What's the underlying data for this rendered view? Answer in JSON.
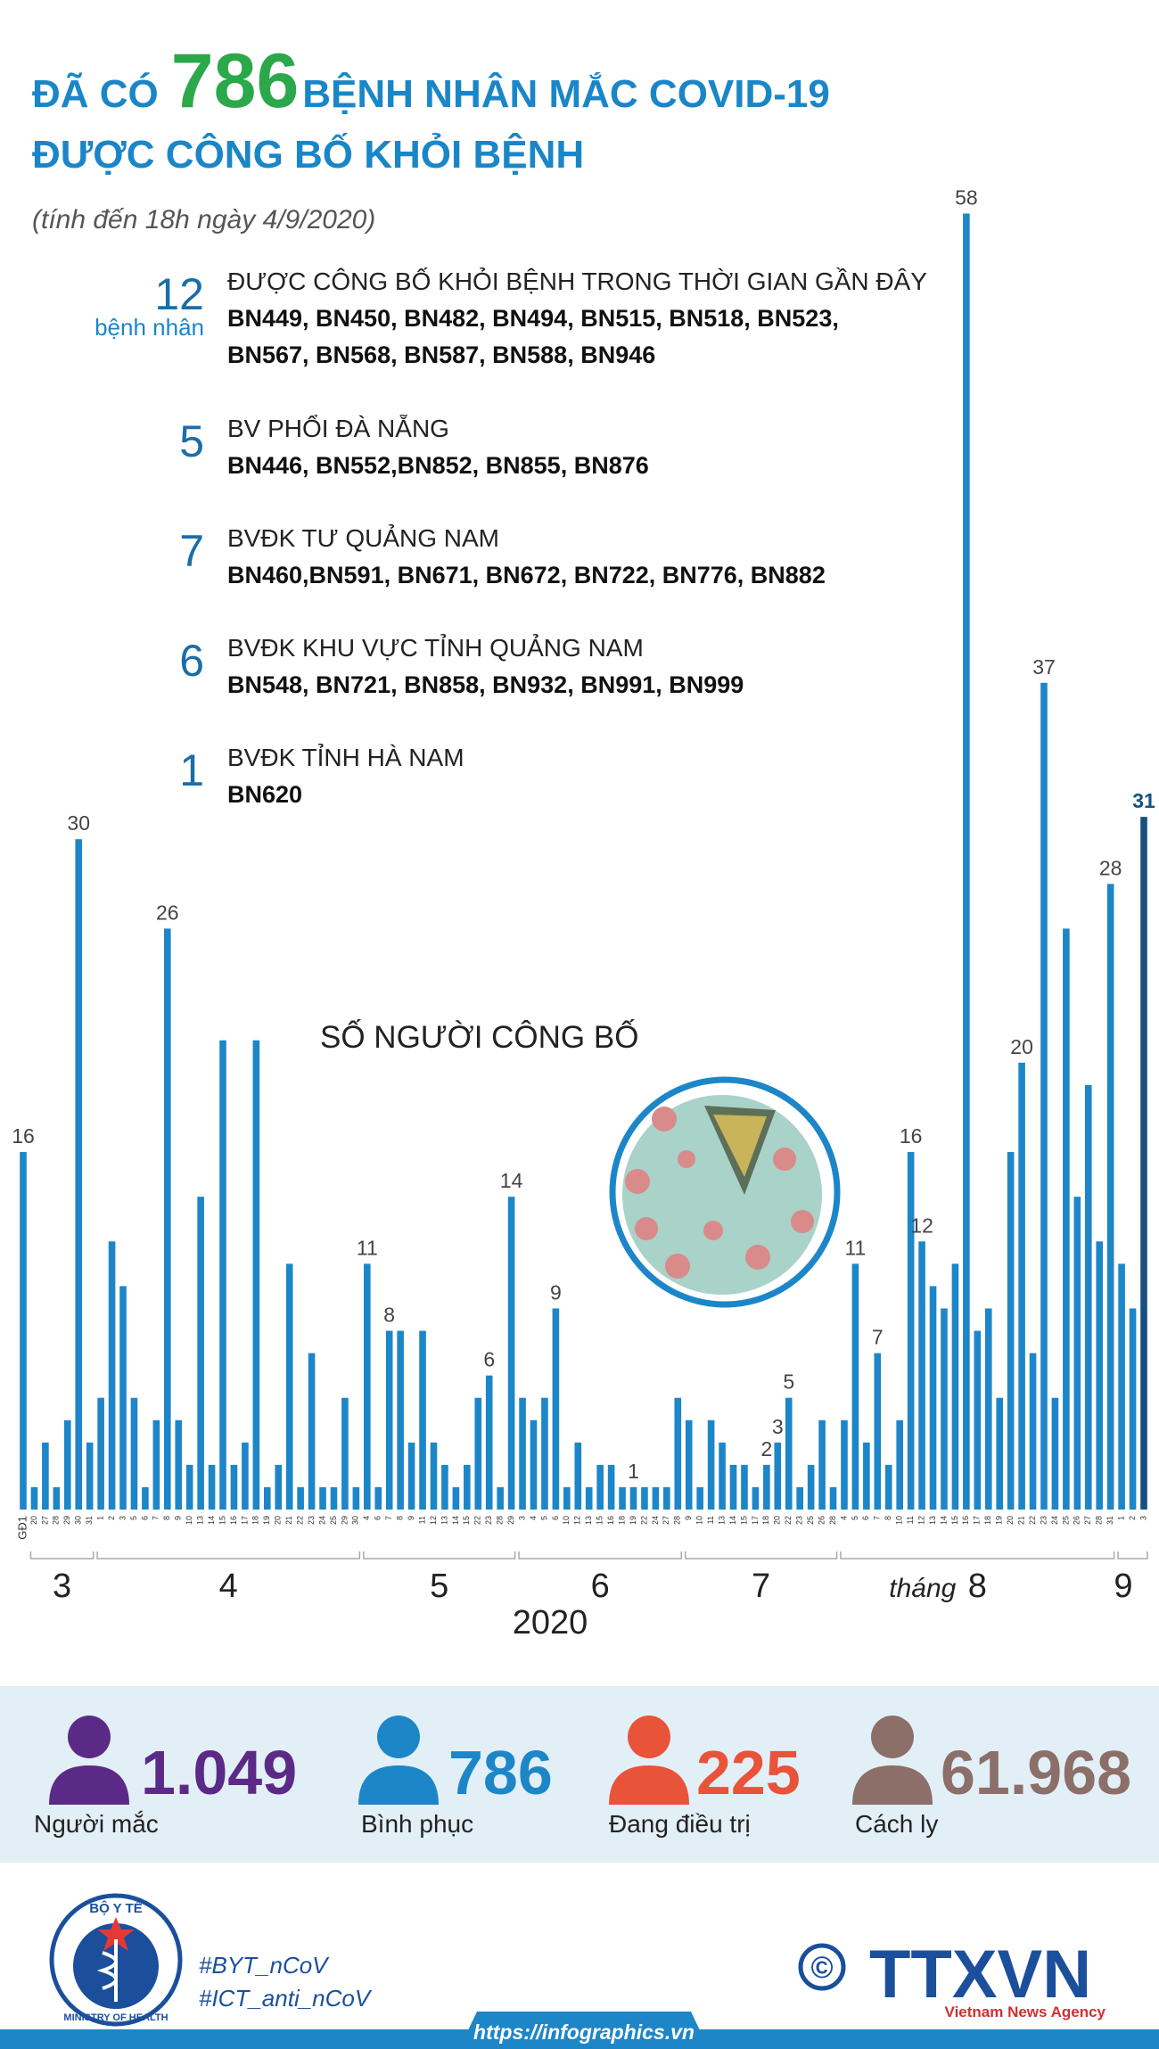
{
  "header": {
    "title_prefix": "ĐÃ CÓ",
    "title_number": "786",
    "title_rest": "BỆNH NHÂN MẮC COVID-19",
    "title_line2": "ĐƯỢC CÔNG BỐ KHỎI BỆNH",
    "subtitle": "(tính đến 18h ngày 4/9/2020)"
  },
  "groups": [
    {
      "count": 12,
      "unit": "bệnh nhân",
      "heading": "ĐƯỢC CÔNG BỐ KHỎI BỆNH TRONG THỜI GIAN GẦN ĐÂY",
      "patients": [
        "BN449, BN450, BN482, BN494, BN515, BN518, BN523,",
        "BN567, BN568, BN587, BN588, BN946"
      ]
    },
    {
      "count": 5,
      "heading": "BV PHỔI ĐÀ NẴNG",
      "patients": [
        "BN446, BN552,BN852, BN855, BN876"
      ]
    },
    {
      "count": 7,
      "heading": "BVĐK TƯ QUẢNG NAM",
      "patients": [
        "BN460,BN591, BN671, BN672, BN722, BN776, BN882"
      ]
    },
    {
      "count": 6,
      "heading": "BVĐK KHU VỰC TỈNH QUẢNG NAM",
      "patients": [
        "BN548, BN721, BN858, BN932, BN991, BN999"
      ]
    },
    {
      "count": 1,
      "heading": "BVĐK TỈNH HÀ NAM",
      "patients": [
        "BN620"
      ]
    }
  ],
  "chart_data": {
    "type": "bar",
    "title": "SỐ NGƯỜI CÔNG BỐ",
    "categories": [
      "GĐ1",
      "20",
      "27",
      "28",
      "29",
      "30",
      "31",
      "1",
      "2",
      "3",
      "5",
      "6",
      "7",
      "8",
      "9",
      "10",
      "13",
      "14",
      "15",
      "16",
      "17",
      "18",
      "19",
      "20",
      "21",
      "22",
      "23",
      "24",
      "25",
      "29",
      "30",
      "4",
      "6",
      "7",
      "8",
      "9",
      "11",
      "12",
      "13",
      "14",
      "15",
      "22",
      "23",
      "28",
      "29",
      "3",
      "4",
      "5",
      "6",
      "10",
      "12",
      "13",
      "15",
      "16",
      "18",
      "19",
      "22",
      "24",
      "27",
      "28",
      "9",
      "10",
      "11",
      "13",
      "14",
      "15",
      "17",
      "18",
      "20",
      "22",
      "23",
      "25",
      "26",
      "28",
      "4",
      "5",
      "6",
      "7",
      "8",
      "10",
      "11",
      "12",
      "13",
      "14",
      "15",
      "16",
      "17",
      "18",
      "19",
      "20",
      "21",
      "22",
      "23",
      "24",
      "25",
      "26",
      "27",
      "28",
      "31",
      "1",
      "2",
      "3"
    ],
    "values": [
      16,
      1,
      3,
      1,
      4,
      30,
      3,
      5,
      12,
      10,
      5,
      1,
      4,
      26,
      4,
      2,
      14,
      2,
      21,
      2,
      3,
      21,
      1,
      2,
      11,
      1,
      7,
      1,
      1,
      5,
      1,
      11,
      1,
      8,
      8,
      3,
      8,
      3,
      2,
      1,
      2,
      5,
      6,
      1,
      14,
      5,
      4,
      5,
      9,
      1,
      3,
      1,
      2,
      2,
      1,
      1,
      1,
      1,
      1,
      5,
      4,
      1,
      4,
      3,
      2,
      2,
      1,
      2,
      3,
      5,
      1,
      2,
      4,
      1,
      4,
      11,
      3,
      7,
      2,
      4,
      16,
      12,
      10,
      9,
      11,
      58,
      8,
      9,
      5,
      16,
      20,
      7,
      37,
      5,
      26,
      14,
      19,
      12,
      28,
      11,
      9,
      31
    ],
    "value_labels": [
      "16",
      null,
      null,
      null,
      null,
      "30",
      null,
      null,
      null,
      null,
      null,
      null,
      null,
      "26",
      null,
      null,
      null,
      null,
      null,
      null,
      null,
      null,
      null,
      null,
      null,
      null,
      null,
      null,
      null,
      null,
      null,
      "11",
      null,
      "8",
      null,
      null,
      null,
      null,
      null,
      null,
      null,
      null,
      "6",
      null,
      "14",
      null,
      null,
      null,
      "9",
      null,
      null,
      null,
      null,
      null,
      null,
      "1",
      null,
      null,
      null,
      null,
      null,
      null,
      null,
      null,
      null,
      null,
      null,
      "2",
      "3",
      "5",
      null,
      null,
      null,
      null,
      null,
      "11",
      null,
      "7",
      null,
      null,
      "16",
      "12",
      null,
      null,
      null,
      "58",
      null,
      null,
      null,
      null,
      "20",
      null,
      "37",
      null,
      null,
      null,
      null,
      null,
      "28",
      null,
      null,
      "31"
    ],
    "color": "#1d86c8",
    "highlight_color": "#17507f",
    "months": [
      "3",
      "4",
      "5",
      "6",
      "7",
      "8",
      "9"
    ],
    "month_prefix": "tháng",
    "year": "2020"
  },
  "stats": [
    {
      "value": "1.049",
      "label": "Người mắc",
      "color": "#5b2a86"
    },
    {
      "value": "786",
      "label": "Bình phục",
      "color": "#1d86c8"
    },
    {
      "value": "225",
      "label": "Đang điều trị",
      "color": "#e8533a"
    },
    {
      "value": "61.968",
      "label": "Cách ly",
      "color": "#8b6f68"
    }
  ],
  "footer": {
    "ministry_vn": "BỘ Y TẾ",
    "ministry_en": "MINISTRY OF HEALTH",
    "hashtags": [
      "#BYT_nCoV",
      "#ICT_anti_nCoV"
    ],
    "copyright": "©",
    "agency": "TTXVN",
    "agency_en": "Vietnam News Agency",
    "url": "https://infographics.vn"
  }
}
